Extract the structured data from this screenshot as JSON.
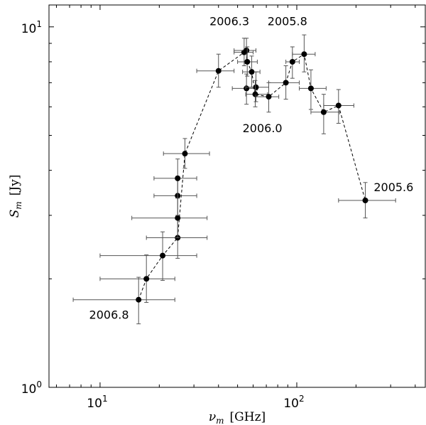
{
  "chart_data": {
    "type": "scatter",
    "title": "",
    "xlabel_var": "ν",
    "xlabel_sub": "m",
    "xlabel_unit": "[GHz]",
    "ylabel_var": "S",
    "ylabel_sub": "m",
    "ylabel_unit": "[Jy]",
    "x_scale": "log",
    "y_scale": "log",
    "xlim": [
      5.5,
      450
    ],
    "ylim": [
      1,
      11.5
    ],
    "x_ticks": [
      {
        "value": 10,
        "base": "10",
        "exp": "1"
      },
      {
        "value": 100,
        "base": "10",
        "exp": "2"
      }
    ],
    "y_ticks": [
      {
        "value": 1,
        "base": "10",
        "exp": "0"
      },
      {
        "value": 10,
        "base": "10",
        "exp": "1"
      }
    ],
    "grid": false,
    "line_style": "dashed",
    "points": [
      {
        "x": 15.7,
        "y": 1.75,
        "xerr": [
          7.3,
          24.0
        ],
        "yerr": [
          1.5,
          2.02
        ]
      },
      {
        "x": 17.2,
        "y": 2.0,
        "xerr": [
          10.0,
          24.0
        ],
        "yerr": [
          1.72,
          2.33
        ]
      },
      {
        "x": 20.8,
        "y": 2.32,
        "xerr": [
          10.0,
          31.0
        ],
        "yerr": [
          1.98,
          2.7
        ]
      },
      {
        "x": 24.8,
        "y": 2.6,
        "xerr": [
          17.2,
          35.0
        ],
        "yerr": [
          2.28,
          2.97
        ]
      },
      {
        "x": 24.8,
        "y": 2.95,
        "xerr": [
          14.5,
          35.0
        ],
        "yerr": [
          2.6,
          3.35
        ]
      },
      {
        "x": 24.8,
        "y": 3.4,
        "xerr": [
          18.8,
          31.0
        ],
        "yerr": [
          3.0,
          3.85
        ]
      },
      {
        "x": 24.8,
        "y": 3.8,
        "xerr": [
          18.8,
          31.0
        ],
        "yerr": [
          3.35,
          4.3
        ]
      },
      {
        "x": 27.0,
        "y": 4.45,
        "xerr": [
          21.0,
          36.0
        ],
        "yerr": [
          4.05,
          4.9
        ]
      },
      {
        "x": 40.0,
        "y": 7.55,
        "xerr": [
          31.0,
          48.0
        ],
        "yerr": [
          6.8,
          8.4
        ]
      },
      {
        "x": 54.0,
        "y": 8.5,
        "xerr": [
          48.0,
          60.0
        ],
        "yerr": [
          7.8,
          9.3
        ]
      },
      {
        "x": 55.5,
        "y": 8.6,
        "xerr": [
          48.0,
          62.0
        ],
        "yerr": [
          7.9,
          9.3
        ]
      },
      {
        "x": 56.0,
        "y": 8.0,
        "xerr": [
          50.0,
          63.0
        ],
        "yerr": [
          7.3,
          8.8
        ]
      },
      {
        "x": 59.0,
        "y": 7.5,
        "xerr": [
          53.0,
          65.0
        ],
        "yerr": [
          6.8,
          8.3
        ]
      },
      {
        "x": 55.5,
        "y": 6.75,
        "xerr": [
          47.0,
          63.0
        ],
        "yerr": [
          6.1,
          7.4
        ]
      },
      {
        "x": 62.0,
        "y": 6.8,
        "xerr": [
          55.0,
          72.0
        ],
        "yerr": [
          6.2,
          7.5
        ]
      },
      {
        "x": 61.5,
        "y": 6.5,
        "xerr": [
          55.0,
          71.0
        ],
        "yerr": [
          6.0,
          7.1
        ]
      },
      {
        "x": 72.0,
        "y": 6.4,
        "xerr": [
          62.0,
          81.0
        ],
        "yerr": [
          5.8,
          7.0
        ]
      },
      {
        "x": 88.0,
        "y": 7.0,
        "xerr": [
          72.0,
          103.0
        ],
        "yerr": [
          6.3,
          7.8
        ]
      },
      {
        "x": 95.0,
        "y": 8.0,
        "xerr": [
          88.0,
          103.0
        ],
        "yerr": [
          7.2,
          8.8
        ]
      },
      {
        "x": 109.0,
        "y": 8.4,
        "xerr": [
          95.0,
          124.0
        ],
        "yerr": [
          7.5,
          9.5
        ]
      },
      {
        "x": 118.0,
        "y": 6.75,
        "xerr": [
          103.0,
          141.0
        ],
        "yerr": [
          5.9,
          7.6
        ]
      },
      {
        "x": 137.0,
        "y": 5.8,
        "xerr": [
          118.0,
          165.0
        ],
        "yerr": [
          5.05,
          6.5
        ]
      },
      {
        "x": 163.0,
        "y": 6.05,
        "xerr": [
          137.0,
          195.0
        ],
        "yerr": [
          5.4,
          6.7
        ]
      },
      {
        "x": 223.0,
        "y": 3.3,
        "xerr": [
          163.0,
          318.0
        ],
        "yerr": [
          2.95,
          3.7
        ]
      }
    ],
    "line_path": [
      [
        15.7,
        1.75
      ],
      [
        17.2,
        2.0
      ],
      [
        20.8,
        2.32
      ],
      [
        24.8,
        2.6
      ],
      [
        27.0,
        4.45
      ],
      [
        40.0,
        7.55
      ],
      [
        54.0,
        8.5
      ],
      [
        55.5,
        8.6
      ],
      [
        56.0,
        8.0
      ],
      [
        59.0,
        7.5
      ],
      [
        61.5,
        6.5
      ],
      [
        72.0,
        6.4
      ],
      [
        88.0,
        7.0
      ],
      [
        95.0,
        8.0
      ],
      [
        109.0,
        8.4
      ],
      [
        118.0,
        6.75
      ],
      [
        137.0,
        5.8
      ],
      [
        163.0,
        6.05
      ],
      [
        223.0,
        3.3
      ]
    ],
    "annotations": [
      {
        "text": "2006.3",
        "x": 36.0,
        "y": 10.1
      },
      {
        "text": "2005.8",
        "x": 71.0,
        "y": 10.1
      },
      {
        "text": "2006.0",
        "x": 53.0,
        "y": 5.1
      },
      {
        "text": "2006.8",
        "x": 8.8,
        "y": 1.55
      },
      {
        "text": "2005.6",
        "x": 246.0,
        "y": 3.5
      }
    ]
  }
}
